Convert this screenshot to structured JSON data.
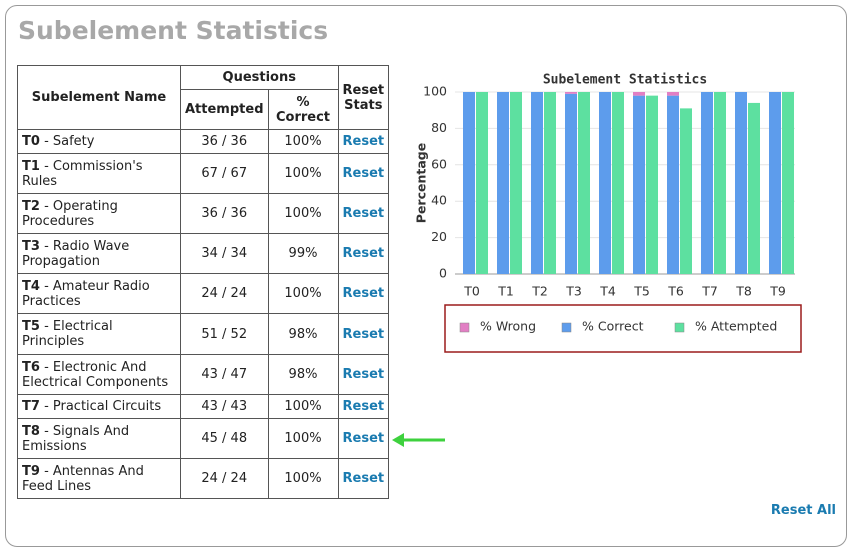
{
  "header": {
    "title": "Subelement Statistics"
  },
  "table": {
    "headers": {
      "name": "Subelement Name",
      "questions": "Questions",
      "attempted": "Attempted",
      "correct": "% Correct",
      "reset": "Reset Stats"
    },
    "rows": [
      {
        "code": "T0",
        "name": "- Safety",
        "attempted": "36 / 36",
        "correct": "100%",
        "reset": "Reset"
      },
      {
        "code": "T1",
        "name": "- Commission's Rules",
        "attempted": "67 / 67",
        "correct": "100%",
        "reset": "Reset"
      },
      {
        "code": "T2",
        "name": "- Operating Procedures",
        "attempted": "36 / 36",
        "correct": "100%",
        "reset": "Reset"
      },
      {
        "code": "T3",
        "name": "- Radio Wave Propagation",
        "attempted": "34 / 34",
        "correct": "99%",
        "reset": "Reset"
      },
      {
        "code": "T4",
        "name": "- Amateur Radio Practices",
        "attempted": "24 / 24",
        "correct": "100%",
        "reset": "Reset"
      },
      {
        "code": "T5",
        "name": "- Electrical Principles",
        "attempted": "51 / 52",
        "correct": "98%",
        "reset": "Reset"
      },
      {
        "code": "T6",
        "name": "- Electronic And Electrical Components",
        "attempted": "43 / 47",
        "correct": "98%",
        "reset": "Reset"
      },
      {
        "code": "T7",
        "name": "- Practical Circuits",
        "attempted": "43 / 43",
        "correct": "100%",
        "reset": "Reset"
      },
      {
        "code": "T8",
        "name": "- Signals And Emissions",
        "attempted": "45 / 48",
        "correct": "100%",
        "reset": "Reset"
      },
      {
        "code": "T9",
        "name": "- Antennas And Feed Lines",
        "attempted": "24 / 24",
        "correct": "100%",
        "reset": "Reset"
      }
    ]
  },
  "reset_all": "Reset All",
  "chart_data": {
    "type": "bar",
    "title": "Subelement Statistics",
    "ylabel": "Percentage",
    "categories": [
      "T0",
      "T1",
      "T2",
      "T3",
      "T4",
      "T5",
      "T6",
      "T7",
      "T8",
      "T9"
    ],
    "series": [
      {
        "name": "% Wrong",
        "color": "#e27fc4",
        "stacked": true,
        "values": [
          0,
          0,
          0,
          1,
          0,
          2,
          2,
          0,
          0,
          0
        ]
      },
      {
        "name": "% Correct",
        "color": "#5d9cec",
        "stacked": true,
        "values": [
          100,
          100,
          100,
          99,
          100,
          98,
          98,
          100,
          100,
          100
        ]
      },
      {
        "name": "% Attempted",
        "color": "#5de0a0",
        "stacked": false,
        "values": [
          100,
          100,
          100,
          100,
          100,
          98,
          91,
          100,
          94,
          100
        ]
      }
    ],
    "ylim": [
      0,
      100
    ],
    "yticks": [
      0,
      20,
      40,
      60,
      80,
      100
    ],
    "grid": true,
    "legend": "bottom"
  }
}
